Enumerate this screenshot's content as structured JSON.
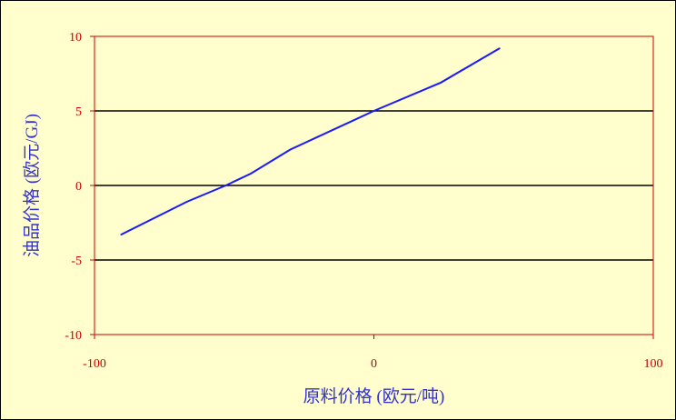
{
  "chart_data": {
    "type": "line",
    "title": "",
    "xlabel": "原料价格 (欧元/吨)",
    "ylabel": "油品价格 (欧元/GJ)",
    "xlim": [
      -100,
      100
    ],
    "ylim": [
      -10,
      10
    ],
    "x_ticks": [
      "-100",
      "0",
      "100"
    ],
    "y_ticks": [
      "10",
      "5",
      "0",
      "-5",
      "-10"
    ],
    "grid": {
      "horizontal": true,
      "vertical": false
    },
    "series": [
      {
        "color": "#1a1aff",
        "x": [
          -90.5,
          -67,
          -53,
          -44,
          -30,
          0,
          24,
          45
        ],
        "y": [
          -3.3,
          -1.1,
          0,
          0.8,
          2.4,
          5,
          6.9,
          9.2
        ]
      }
    ],
    "colors": {
      "background": "#fffecc",
      "frame": "#cc0000",
      "ticks": "#cc0000",
      "labels": "#3333cc",
      "grid": "#000000"
    }
  }
}
